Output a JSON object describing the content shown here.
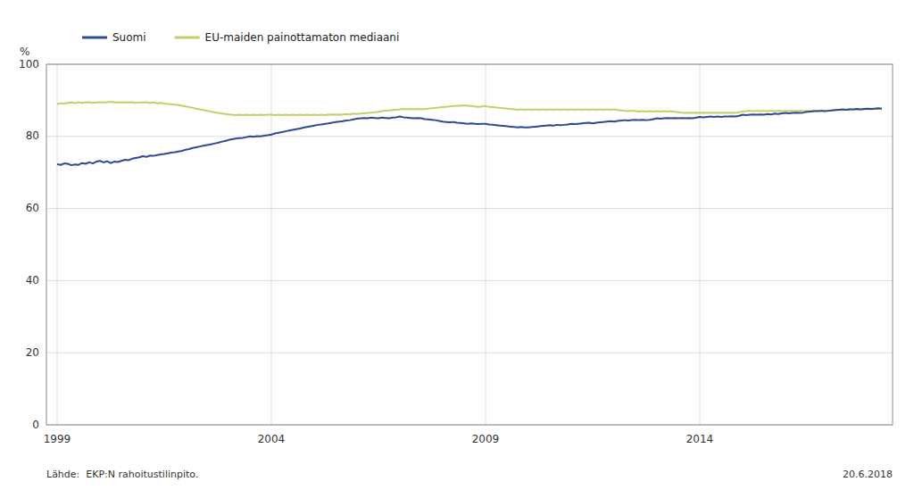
{
  "chart_data": {
    "type": "line",
    "y_label": "%",
    "annotations": [
      "Lähde:  EKP:N rahoitustilinpito.",
      "20.6.2018"
    ],
    "xlim": [
      1998.75,
      2018.5
    ],
    "xticks": [
      1999,
      2004,
      2009,
      2014
    ],
    "ylim": [
      0,
      100
    ],
    "yticks": [
      0,
      20,
      40,
      60,
      80,
      100
    ],
    "grid": true,
    "legend": "top",
    "x": [
      1999.0,
      1999.083,
      1999.167,
      1999.25,
      1999.333,
      1999.417,
      1999.5,
      1999.583,
      1999.667,
      1999.75,
      1999.833,
      1999.917,
      2000.0,
      2000.083,
      2000.167,
      2000.25,
      2000.333,
      2000.417,
      2000.5,
      2000.583,
      2000.667,
      2000.75,
      2000.833,
      2000.917,
      2001.0,
      2001.083,
      2001.167,
      2001.25,
      2001.333,
      2001.417,
      2001.5,
      2001.583,
      2001.667,
      2001.75,
      2001.833,
      2001.917,
      2002.0,
      2002.083,
      2002.167,
      2002.25,
      2002.333,
      2002.417,
      2002.5,
      2002.583,
      2002.667,
      2002.75,
      2002.833,
      2002.917,
      2003.0,
      2003.083,
      2003.167,
      2003.25,
      2003.333,
      2003.417,
      2003.5,
      2003.583,
      2003.667,
      2003.75,
      2003.833,
      2003.917,
      2004.0,
      2004.083,
      2004.167,
      2004.25,
      2004.333,
      2004.417,
      2004.5,
      2004.583,
      2004.667,
      2004.75,
      2004.833,
      2004.917,
      2005.0,
      2005.083,
      2005.167,
      2005.25,
      2005.333,
      2005.417,
      2005.5,
      2005.583,
      2005.667,
      2005.75,
      2005.833,
      2005.917,
      2006.0,
      2006.083,
      2006.167,
      2006.25,
      2006.333,
      2006.417,
      2006.5,
      2006.583,
      2006.667,
      2006.75,
      2006.833,
      2006.917,
      2007.0,
      2007.083,
      2007.167,
      2007.25,
      2007.333,
      2007.417,
      2007.5,
      2007.583,
      2007.667,
      2007.75,
      2007.833,
      2007.917,
      2008.0,
      2008.083,
      2008.167,
      2008.25,
      2008.333,
      2008.417,
      2008.5,
      2008.583,
      2008.667,
      2008.75,
      2008.833,
      2008.917,
      2009.0,
      2009.083,
      2009.167,
      2009.25,
      2009.333,
      2009.417,
      2009.5,
      2009.583,
      2009.667,
      2009.75,
      2009.833,
      2009.917,
      2010.0,
      2010.083,
      2010.167,
      2010.25,
      2010.333,
      2010.417,
      2010.5,
      2010.583,
      2010.667,
      2010.75,
      2010.833,
      2010.917,
      2011.0,
      2011.083,
      2011.167,
      2011.25,
      2011.333,
      2011.417,
      2011.5,
      2011.583,
      2011.667,
      2011.75,
      2011.833,
      2011.917,
      2012.0,
      2012.083,
      2012.167,
      2012.25,
      2012.333,
      2012.417,
      2012.5,
      2012.583,
      2012.667,
      2012.75,
      2012.833,
      2012.917,
      2013.0,
      2013.083,
      2013.167,
      2013.25,
      2013.333,
      2013.417,
      2013.5,
      2013.583,
      2013.667,
      2013.75,
      2013.833,
      2013.917,
      2014.0,
      2014.083,
      2014.167,
      2014.25,
      2014.333,
      2014.417,
      2014.5,
      2014.583,
      2014.667,
      2014.75,
      2014.833,
      2014.917,
      2015.0,
      2015.083,
      2015.167,
      2015.25,
      2015.333,
      2015.417,
      2015.5,
      2015.583,
      2015.667,
      2015.75,
      2015.833,
      2015.917,
      2016.0,
      2016.083,
      2016.167,
      2016.25,
      2016.333,
      2016.417,
      2016.5,
      2016.583,
      2016.667,
      2016.75,
      2016.833,
      2016.917,
      2017.0,
      2017.083,
      2017.167,
      2017.25,
      2017.333,
      2017.417,
      2017.5,
      2017.583,
      2017.667,
      2017.75,
      2017.833,
      2017.917,
      2018.0,
      2018.083,
      2018.167,
      2018.25
    ],
    "series": [
      {
        "name": "EU-maiden painottamaton mediaani",
        "color": "#c5cf6a",
        "values": [
          89.0,
          89.2,
          89.1,
          89.3,
          89.4,
          89.2,
          89.5,
          89.3,
          89.4,
          89.5,
          89.3,
          89.4,
          89.5,
          89.4,
          89.5,
          89.6,
          89.4,
          89.5,
          89.4,
          89.5,
          89.4,
          89.5,
          89.3,
          89.4,
          89.4,
          89.5,
          89.3,
          89.4,
          89.2,
          89.3,
          89.1,
          89.0,
          88.9,
          88.8,
          88.7,
          88.5,
          88.3,
          88.1,
          87.9,
          87.7,
          87.5,
          87.3,
          87.1,
          86.9,
          86.7,
          86.5,
          86.4,
          86.2,
          86.1,
          86.0,
          85.9,
          86.0,
          85.9,
          86.0,
          85.9,
          86.0,
          85.9,
          86.0,
          85.9,
          86.0,
          86.0,
          85.9,
          86.0,
          85.9,
          86.0,
          85.9,
          86.0,
          85.9,
          86.0,
          85.9,
          86.0,
          85.9,
          86.0,
          85.9,
          86.0,
          85.9,
          86.1,
          86.0,
          86.1,
          86.0,
          86.1,
          86.2,
          86.1,
          86.3,
          86.2,
          86.3,
          86.4,
          86.5,
          86.6,
          86.7,
          86.8,
          87.0,
          87.1,
          87.2,
          87.3,
          87.4,
          87.5,
          87.6,
          87.5,
          87.6,
          87.5,
          87.6,
          87.5,
          87.6,
          87.7,
          87.8,
          87.9,
          88.0,
          88.1,
          88.2,
          88.3,
          88.4,
          88.5,
          88.5,
          88.6,
          88.5,
          88.4,
          88.3,
          88.2,
          88.3,
          88.4,
          88.2,
          88.1,
          88.0,
          87.9,
          87.8,
          87.7,
          87.6,
          87.5,
          87.4,
          87.5,
          87.4,
          87.5,
          87.4,
          87.5,
          87.4,
          87.5,
          87.4,
          87.5,
          87.4,
          87.5,
          87.4,
          87.5,
          87.4,
          87.5,
          87.4,
          87.5,
          87.4,
          87.5,
          87.4,
          87.5,
          87.4,
          87.5,
          87.4,
          87.5,
          87.4,
          87.5,
          87.3,
          87.2,
          87.1,
          87.0,
          87.1,
          87.0,
          86.9,
          87.0,
          86.9,
          87.0,
          86.9,
          87.0,
          86.9,
          87.0,
          86.9,
          87.0,
          86.8,
          86.7,
          86.6,
          86.5,
          86.6,
          86.5,
          86.6,
          86.5,
          86.6,
          86.5,
          86.6,
          86.5,
          86.6,
          86.5,
          86.6,
          86.5,
          86.6,
          86.5,
          86.7,
          86.9,
          87.0,
          87.1,
          87.0,
          87.1,
          87.0,
          87.1,
          87.0,
          87.1,
          87.0,
          87.1,
          87.0,
          87.1,
          87.0,
          87.1,
          87.0,
          87.1,
          87.0,
          87.1,
          87.0,
          87.1,
          87.0,
          87.1,
          87.0,
          87.1,
          87.2,
          87.3,
          87.4,
          87.3,
          87.4,
          87.5,
          87.4,
          87.5,
          87.4,
          87.5,
          87.6,
          87.5,
          87.6,
          87.7,
          87.6
        ]
      },
      {
        "name": "Suomi",
        "color": "#2e4a96",
        "values": [
          72.3,
          72.1,
          72.5,
          72.4,
          72.0,
          72.2,
          72.1,
          72.6,
          72.4,
          72.8,
          72.5,
          73.0,
          73.2,
          72.8,
          73.1,
          72.6,
          73.0,
          72.9,
          73.2,
          73.5,
          73.4,
          73.8,
          74.0,
          74.2,
          74.5,
          74.3,
          74.7,
          74.6,
          74.8,
          75.0,
          75.1,
          75.3,
          75.5,
          75.6,
          75.8,
          76.0,
          76.3,
          76.5,
          76.8,
          77.0,
          77.2,
          77.4,
          77.6,
          77.8,
          78.0,
          78.2,
          78.5,
          78.7,
          79.0,
          79.2,
          79.4,
          79.5,
          79.6,
          79.8,
          80.0,
          79.9,
          80.1,
          80.0,
          80.2,
          80.3,
          80.5,
          80.8,
          81.0,
          81.2,
          81.4,
          81.6,
          81.8,
          82.0,
          82.2,
          82.4,
          82.6,
          82.8,
          83.0,
          83.2,
          83.3,
          83.5,
          83.6,
          83.8,
          84.0,
          84.1,
          84.2,
          84.4,
          84.5,
          84.7,
          84.9,
          85.0,
          85.1,
          85.0,
          85.2,
          85.1,
          85.0,
          85.2,
          85.1,
          85.0,
          85.2,
          85.3,
          85.5,
          85.3,
          85.2,
          85.1,
          85.0,
          85.1,
          85.0,
          84.8,
          84.7,
          84.6,
          84.5,
          84.3,
          84.1,
          84.0,
          83.9,
          84.0,
          83.8,
          83.7,
          83.6,
          83.5,
          83.6,
          83.5,
          83.4,
          83.5,
          83.5,
          83.3,
          83.2,
          83.1,
          83.0,
          82.9,
          82.8,
          82.7,
          82.6,
          82.5,
          82.6,
          82.5,
          82.5,
          82.6,
          82.7,
          82.8,
          82.9,
          83.0,
          83.1,
          83.0,
          83.2,
          83.1,
          83.2,
          83.3,
          83.5,
          83.4,
          83.5,
          83.6,
          83.7,
          83.8,
          83.6,
          83.8,
          83.9,
          84.0,
          84.1,
          84.2,
          84.1,
          84.3,
          84.4,
          84.5,
          84.4,
          84.5,
          84.6,
          84.5,
          84.6,
          84.5,
          84.6,
          84.8,
          85.0,
          84.9,
          85.0,
          85.1,
          85.0,
          85.1,
          85.0,
          85.1,
          85.0,
          85.1,
          85.0,
          85.2,
          85.4,
          85.3,
          85.4,
          85.5,
          85.4,
          85.5,
          85.4,
          85.5,
          85.5,
          85.6,
          85.5,
          85.7,
          86.0,
          85.9,
          86.0,
          86.1,
          86.0,
          86.1,
          86.0,
          86.2,
          86.1,
          86.3,
          86.2,
          86.4,
          86.5,
          86.4,
          86.5,
          86.6,
          86.5,
          86.6,
          86.8,
          86.9,
          87.0,
          87.0,
          87.1,
          87.0,
          87.1,
          87.2,
          87.3,
          87.4,
          87.5,
          87.4,
          87.5,
          87.5,
          87.6,
          87.5,
          87.6,
          87.7,
          87.6,
          87.7,
          87.8,
          87.7
        ]
      }
    ]
  }
}
